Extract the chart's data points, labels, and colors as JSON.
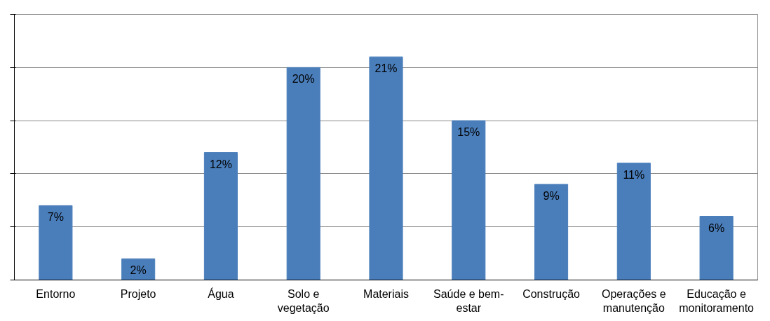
{
  "chart_data": {
    "type": "bar",
    "categories": [
      "Entorno",
      "Projeto",
      "Água",
      "Solo e vegetação",
      "Materiais",
      "Saúde e bem-estar",
      "Construção",
      "Operações e manutenção",
      "Educação e monitoramento"
    ],
    "values": [
      7,
      2,
      12,
      20,
      21,
      15,
      9,
      11,
      6
    ],
    "value_labels": [
      "7%",
      "2%",
      "12%",
      "20%",
      "21%",
      "15%",
      "9%",
      "11%",
      "6%"
    ],
    "color": "#4a7ebb",
    "ylim": [
      0,
      25
    ],
    "yticks": [
      {
        "value": 0,
        "label": null
      },
      {
        "value": 5,
        "label": null
      },
      {
        "value": 10,
        "label": null
      },
      {
        "value": 15,
        "label": null
      },
      {
        "value": 20,
        "label": null
      },
      {
        "value": 25,
        "label": null
      }
    ],
    "grid": "y",
    "tick_labels": "x"
  }
}
